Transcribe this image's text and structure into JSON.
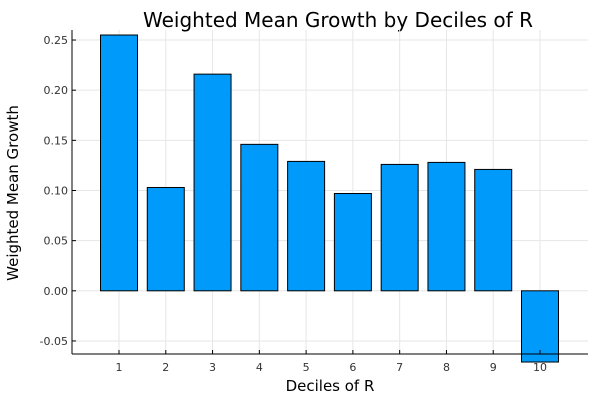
{
  "colors": {
    "bar_fill": "#009AFA",
    "bar_stroke": "#000000",
    "grid": "#E6E6E6",
    "axis": "#000000"
  },
  "chart_data": {
    "type": "bar",
    "title": "Weighted Mean Growth by Deciles of R",
    "xlabel": "Deciles of R",
    "ylabel": "Weighted Mean Growth",
    "categories": [
      "1",
      "2",
      "3",
      "4",
      "5",
      "6",
      "7",
      "8",
      "9",
      "10"
    ],
    "values": [
      0.255,
      0.103,
      0.216,
      0.146,
      0.129,
      0.097,
      0.126,
      0.128,
      0.121,
      -0.071
    ],
    "yticks": [
      "-0.05",
      "0.00",
      "0.05",
      "0.10",
      "0.15",
      "0.20",
      "0.25"
    ],
    "ylim": [
      -0.063,
      0.26
    ],
    "grid": true,
    "legend": "none"
  }
}
